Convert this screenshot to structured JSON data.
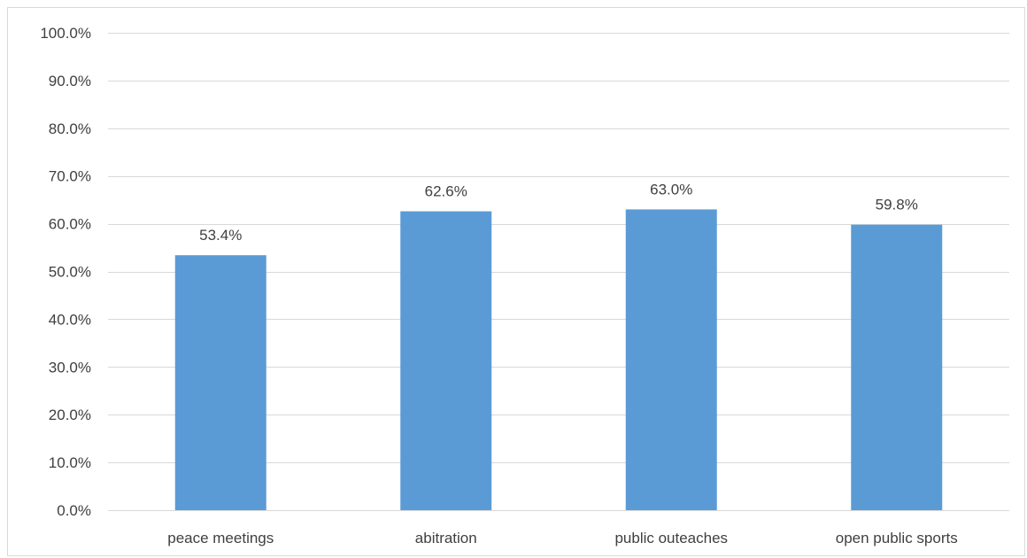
{
  "chart_data": {
    "type": "bar",
    "title": "",
    "xlabel": "",
    "ylabel": "",
    "categories": [
      "peace meetings",
      "abitration",
      "public outeaches",
      "open public sports"
    ],
    "values": [
      53.4,
      62.6,
      63.0,
      59.8
    ],
    "data_labels": [
      "53.4%",
      "62.6%",
      "63.0%",
      "59.8%"
    ],
    "ylim": [
      0,
      100
    ],
    "y_ticks": [
      0,
      10,
      20,
      30,
      40,
      50,
      60,
      70,
      80,
      90,
      100
    ],
    "y_tick_labels": [
      "0.0%",
      "10.0%",
      "20.0%",
      "30.0%",
      "40.0%",
      "50.0%",
      "60.0%",
      "70.0%",
      "80.0%",
      "90.0%",
      "100.0%"
    ],
    "grid": true,
    "legend": "none",
    "bar_color": "#5b9bd5",
    "grid_color": "#d9d9d9"
  }
}
